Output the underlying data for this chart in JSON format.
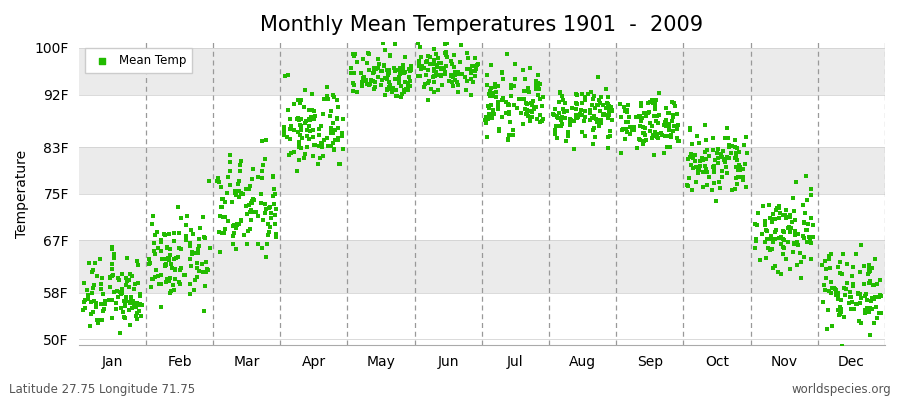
{
  "title": "Monthly Mean Temperatures 1901  -  2009",
  "ylabel": "Temperature",
  "bottom_left_text": "Latitude 27.75 Longitude 71.75",
  "bottom_right_text": "worldspecies.org",
  "legend_label": "Mean Temp",
  "marker_color": "#22bb00",
  "background_color": "#ffffff",
  "band_color": "#ebebeb",
  "ytick_labels": [
    "50F",
    "58F",
    "67F",
    "75F",
    "83F",
    "92F",
    "100F"
  ],
  "ytick_values": [
    50,
    58,
    67,
    75,
    83,
    92,
    100
  ],
  "ylim": [
    49,
    101
  ],
  "months": [
    "Jan",
    "Feb",
    "Mar",
    "Apr",
    "May",
    "Jun",
    "Jul",
    "Aug",
    "Sep",
    "Oct",
    "Nov",
    "Dec"
  ],
  "n_years": 109,
  "monthly_means": [
    57.5,
    63.5,
    72.5,
    86.0,
    95.5,
    96.5,
    90.5,
    88.5,
    87.0,
    80.0,
    68.5,
    58.5
  ],
  "monthly_stds": [
    3.2,
    3.5,
    4.5,
    3.5,
    2.2,
    2.2,
    2.5,
    2.2,
    2.2,
    3.0,
    3.8,
    3.5
  ],
  "title_fontsize": 15,
  "axis_fontsize": 10,
  "tick_fontsize": 10,
  "small_fontsize": 8.5
}
